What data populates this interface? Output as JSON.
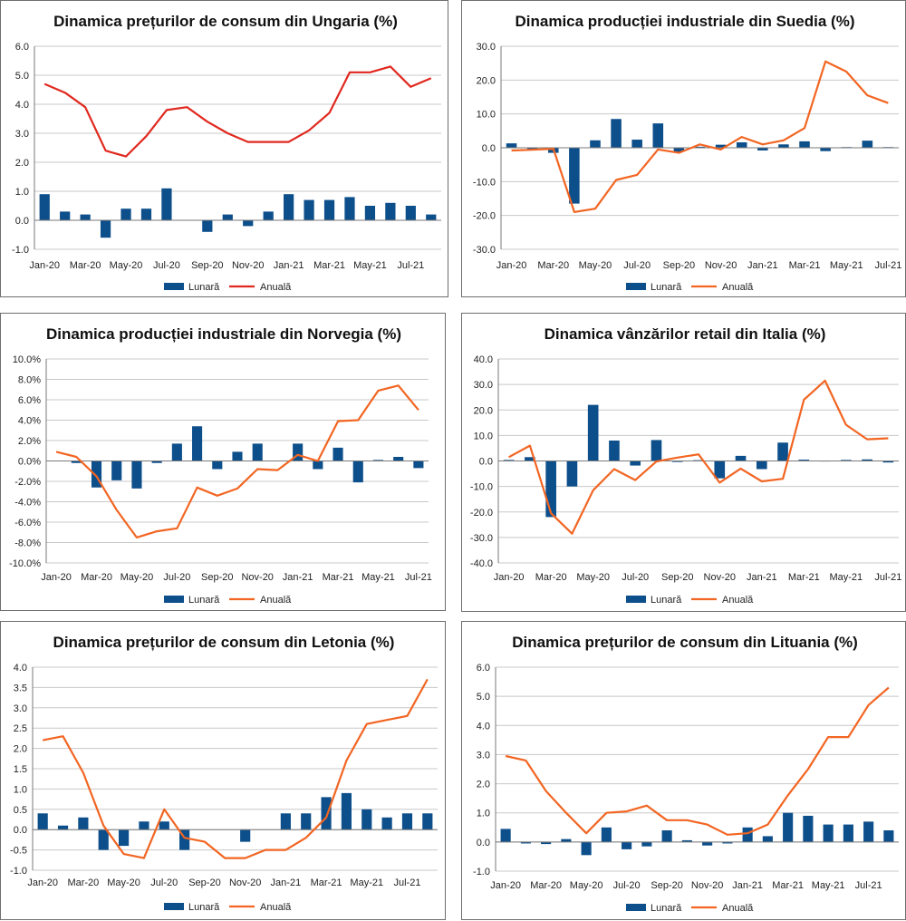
{
  "colors": {
    "bar": "#0d4f8b",
    "line_red": "#e0281e",
    "line_orange": "#f26522",
    "grid": "#c8c8c8",
    "axis": "#7a7a7a"
  },
  "chart_data": [
    {
      "id": "c1",
      "type": "bar+line",
      "title": "Dinamica prețurilor de consum din Ungaria (%)",
      "categories": [
        "Jan-20",
        "Feb-20",
        "Mar-20",
        "Apr-20",
        "May-20",
        "Jun-20",
        "Jul-20",
        "Aug-20",
        "Sep-20",
        "Oct-20",
        "Nov-20",
        "Dec-20",
        "Jan-21",
        "Feb-21",
        "Mar-21",
        "Apr-21",
        "May-21",
        "Jun-21",
        "Jul-21",
        "Aug-21"
      ],
      "xtick_labels": [
        "Jan-20",
        "Mar-20",
        "May-20",
        "Jul-20",
        "Sep-20",
        "Nov-20",
        "Jan-21",
        "Mar-21",
        "May-21",
        "Jul-21"
      ],
      "xtick_indices": [
        0,
        2,
        4,
        6,
        8,
        10,
        12,
        14,
        16,
        18
      ],
      "ytick_labels": [
        "6.0",
        "5.0",
        "4.0",
        "3.0",
        "2.0",
        "1.0",
        "0.0",
        "-1.0"
      ],
      "ylim": [
        -1,
        6
      ],
      "line_color": "red",
      "series": [
        {
          "name": "Lunară",
          "kind": "bar",
          "values": [
            0.9,
            0.3,
            0.2,
            -0.6,
            0.4,
            0.4,
            1.1,
            0.0,
            -0.4,
            0.2,
            -0.2,
            0.3,
            0.9,
            0.7,
            0.7,
            0.8,
            0.5,
            0.6,
            0.5,
            0.2
          ]
        },
        {
          "name": "Anuală",
          "kind": "line",
          "values": [
            4.7,
            4.4,
            3.9,
            2.4,
            2.2,
            2.9,
            3.8,
            3.9,
            3.4,
            3.0,
            2.7,
            2.7,
            2.7,
            3.1,
            3.7,
            5.1,
            5.1,
            5.3,
            4.6,
            4.9
          ]
        }
      ]
    },
    {
      "id": "c2",
      "type": "bar+line",
      "title": "Dinamica producției industriale din Suedia (%)",
      "categories": [
        "Jan-20",
        "Feb-20",
        "Mar-20",
        "Apr-20",
        "May-20",
        "Jun-20",
        "Jul-20",
        "Aug-20",
        "Sep-20",
        "Oct-20",
        "Nov-20",
        "Dec-20",
        "Jan-21",
        "Feb-21",
        "Mar-21",
        "Apr-21",
        "May-21",
        "Jun-21",
        "Jul-21"
      ],
      "xtick_labels": [
        "Jan-20",
        "Mar-20",
        "May-20",
        "Jul-20",
        "Sep-20",
        "Nov-20",
        "Jan-21",
        "Mar-21",
        "May-21",
        "Jul-21"
      ],
      "xtick_indices": [
        0,
        2,
        4,
        6,
        8,
        10,
        12,
        14,
        16,
        18
      ],
      "ytick_labels": [
        "30.0",
        "20.0",
        "10.0",
        "0.0",
        "-10.0",
        "-20.0",
        "-30.0"
      ],
      "ylim": [
        -30,
        30
      ],
      "line_color": "orange",
      "series": [
        {
          "name": "Lunară",
          "kind": "bar",
          "values": [
            1.3,
            -0.4,
            -1.5,
            -16.5,
            2.2,
            8.5,
            2.4,
            7.2,
            -1.2,
            0.3,
            0.9,
            1.6,
            -0.8,
            1.0,
            1.9,
            -1.0,
            0.2,
            2.1,
            0.2
          ]
        },
        {
          "name": "Anuală",
          "kind": "line",
          "values": [
            -0.8,
            -0.6,
            -0.3,
            -19.0,
            -18.0,
            -9.5,
            -8.0,
            -0.5,
            -1.5,
            1.0,
            -0.5,
            3.2,
            1.0,
            2.2,
            5.8,
            25.5,
            22.5,
            15.5,
            13.2
          ]
        }
      ]
    },
    {
      "id": "c3",
      "type": "bar+line",
      "title": "Dinamica producției industriale din Norvegia (%)",
      "categories": [
        "Jan-20",
        "Feb-20",
        "Mar-20",
        "Apr-20",
        "May-20",
        "Jun-20",
        "Jul-20",
        "Aug-20",
        "Sep-20",
        "Oct-20",
        "Nov-20",
        "Dec-20",
        "Jan-21",
        "Feb-21",
        "Mar-21",
        "Apr-21",
        "May-21",
        "Jun-21",
        "Jul-21"
      ],
      "xtick_labels": [
        "Jan-20",
        "Mar-20",
        "May-20",
        "Jul-20",
        "Sep-20",
        "Nov-20",
        "Jan-21",
        "Mar-21",
        "May-21",
        "Jul-21"
      ],
      "xtick_indices": [
        0,
        2,
        4,
        6,
        8,
        10,
        12,
        14,
        16,
        18
      ],
      "ytick_labels": [
        "10.0%",
        "8.0%",
        "6.0%",
        "4.0%",
        "2.0%",
        "0.0%",
        "-2.0%",
        "-4.0%",
        "-6.0%",
        "-8.0%",
        "-10.0%"
      ],
      "ylim": [
        -10,
        10
      ],
      "line_color": "orange",
      "series": [
        {
          "name": "Lunară",
          "kind": "bar",
          "values": [
            0.0,
            -0.2,
            -2.6,
            -1.9,
            -2.7,
            -0.2,
            1.7,
            3.4,
            -0.8,
            0.9,
            1.7,
            0.0,
            1.7,
            -0.8,
            1.3,
            -2.1,
            0.1,
            0.4,
            -0.7
          ]
        },
        {
          "name": "Anuală",
          "kind": "line",
          "values": [
            0.9,
            0.4,
            -1.5,
            -4.8,
            -7.5,
            -6.9,
            -6.6,
            -2.6,
            -3.4,
            -2.7,
            -0.8,
            -0.9,
            0.6,
            0.0,
            3.9,
            4.0,
            6.9,
            7.4,
            5.0
          ]
        }
      ]
    },
    {
      "id": "c4",
      "type": "bar+line",
      "title": "Dinamica vânzărilor retail din Italia (%)",
      "categories": [
        "Jan-20",
        "Feb-20",
        "Mar-20",
        "Apr-20",
        "May-20",
        "Jun-20",
        "Jul-20",
        "Aug-20",
        "Sep-20",
        "Oct-20",
        "Nov-20",
        "Dec-20",
        "Jan-21",
        "Feb-21",
        "Mar-21",
        "Apr-21",
        "May-21",
        "Jun-21",
        "Jul-21"
      ],
      "xtick_labels": [
        "Jan-20",
        "Mar-20",
        "May-20",
        "Jul-20",
        "Sep-20",
        "Nov-20",
        "Jan-21",
        "Mar-21",
        "May-21",
        "Jul-21"
      ],
      "xtick_indices": [
        0,
        2,
        4,
        6,
        8,
        10,
        12,
        14,
        16,
        18
      ],
      "ytick_labels": [
        "40.0",
        "30.0",
        "20.0",
        "10.0",
        "0.0",
        "-10.0",
        "-20.0",
        "-30.0",
        "-40.0"
      ],
      "ylim": [
        -40,
        40
      ],
      "line_color": "orange",
      "series": [
        {
          "name": "Lunară",
          "kind": "bar",
          "values": [
            0.4,
            1.5,
            -22.0,
            -10.0,
            22.0,
            8.0,
            -1.8,
            8.2,
            -0.4,
            0.3,
            -6.8,
            2.0,
            -3.2,
            7.2,
            0.5,
            -0.2,
            0.4,
            0.6,
            -0.6
          ]
        },
        {
          "name": "Anuală",
          "kind": "line",
          "values": [
            1.5,
            6.0,
            -20.5,
            -28.5,
            -11.5,
            -3.2,
            -7.5,
            -0.2,
            1.3,
            2.6,
            -8.5,
            -3.0,
            -8.0,
            -7.0,
            24.0,
            31.5,
            14.2,
            8.5,
            8.9
          ]
        }
      ]
    },
    {
      "id": "c5",
      "type": "bar+line",
      "title": "Dinamica prețurilor de consum din Letonia (%)",
      "categories": [
        "Jan-20",
        "Feb-20",
        "Mar-20",
        "Apr-20",
        "May-20",
        "Jun-20",
        "Jul-20",
        "Aug-20",
        "Sep-20",
        "Oct-20",
        "Nov-20",
        "Dec-20",
        "Jan-21",
        "Feb-21",
        "Mar-21",
        "Apr-21",
        "May-21",
        "Jun-21",
        "Jul-21",
        "Aug-21"
      ],
      "xtick_labels": [
        "Jan-20",
        "Mar-20",
        "May-20",
        "Jul-20",
        "Sep-20",
        "Nov-20",
        "Jan-21",
        "Mar-21",
        "May-21",
        "Jul-21"
      ],
      "xtick_indices": [
        0,
        2,
        4,
        6,
        8,
        10,
        12,
        14,
        16,
        18
      ],
      "ytick_labels": [
        "4.0",
        "3.5",
        "3.0",
        "2.5",
        "2.0",
        "1.5",
        "1.0",
        "0.5",
        "0.0",
        "-0.5",
        "-1.0"
      ],
      "ylim": [
        -1,
        4
      ],
      "line_color": "orange",
      "series": [
        {
          "name": "Lunară",
          "kind": "bar",
          "values": [
            0.4,
            0.1,
            0.3,
            -0.5,
            -0.4,
            0.2,
            0.2,
            -0.5,
            0.0,
            0.0,
            -0.3,
            0.0,
            0.4,
            0.4,
            0.8,
            0.9,
            0.5,
            0.3,
            0.4,
            0.4
          ]
        },
        {
          "name": "Anuală",
          "kind": "line",
          "values": [
            2.2,
            2.3,
            1.4,
            0.1,
            -0.6,
            -0.7,
            0.5,
            -0.2,
            -0.3,
            -0.7,
            -0.7,
            -0.5,
            -0.5,
            -0.2,
            0.3,
            1.7,
            2.6,
            2.7,
            2.8,
            3.7
          ]
        }
      ]
    },
    {
      "id": "c6",
      "type": "bar+line",
      "title": "Dinamica prețurilor de consum din Lituania (%)",
      "categories": [
        "Jan-20",
        "Feb-20",
        "Mar-20",
        "Apr-20",
        "May-20",
        "Jun-20",
        "Jul-20",
        "Aug-20",
        "Sep-20",
        "Oct-20",
        "Nov-20",
        "Dec-20",
        "Jan-21",
        "Feb-21",
        "Mar-21",
        "Apr-21",
        "May-21",
        "Jun-21",
        "Jul-21",
        "Aug-21"
      ],
      "xtick_labels": [
        "Jan-20",
        "Mar-20",
        "May-20",
        "Jul-20",
        "Sep-20",
        "Nov-20",
        "Jan-21",
        "Mar-21",
        "May-21",
        "Jul-21"
      ],
      "xtick_indices": [
        0,
        2,
        4,
        6,
        8,
        10,
        12,
        14,
        16,
        18
      ],
      "ytick_labels": [
        "6.0",
        "5.0",
        "4.0",
        "3.0",
        "2.0",
        "1.0",
        "0.0",
        "-1.0"
      ],
      "ylim": [
        -1,
        6
      ],
      "line_color": "orange",
      "series": [
        {
          "name": "Lunară",
          "kind": "bar",
          "values": [
            0.45,
            -0.05,
            -0.07,
            0.1,
            -0.45,
            0.5,
            -0.25,
            -0.15,
            0.4,
            0.06,
            -0.12,
            -0.05,
            0.5,
            0.2,
            1.0,
            0.9,
            0.6,
            0.6,
            0.7,
            0.4
          ]
        },
        {
          "name": "Anuală",
          "kind": "line",
          "values": [
            2.95,
            2.8,
            1.75,
            1.0,
            0.3,
            1.0,
            1.05,
            1.25,
            0.75,
            0.75,
            0.6,
            0.25,
            0.3,
            0.6,
            1.6,
            2.5,
            3.6,
            3.6,
            4.7,
            5.3
          ]
        }
      ]
    }
  ]
}
